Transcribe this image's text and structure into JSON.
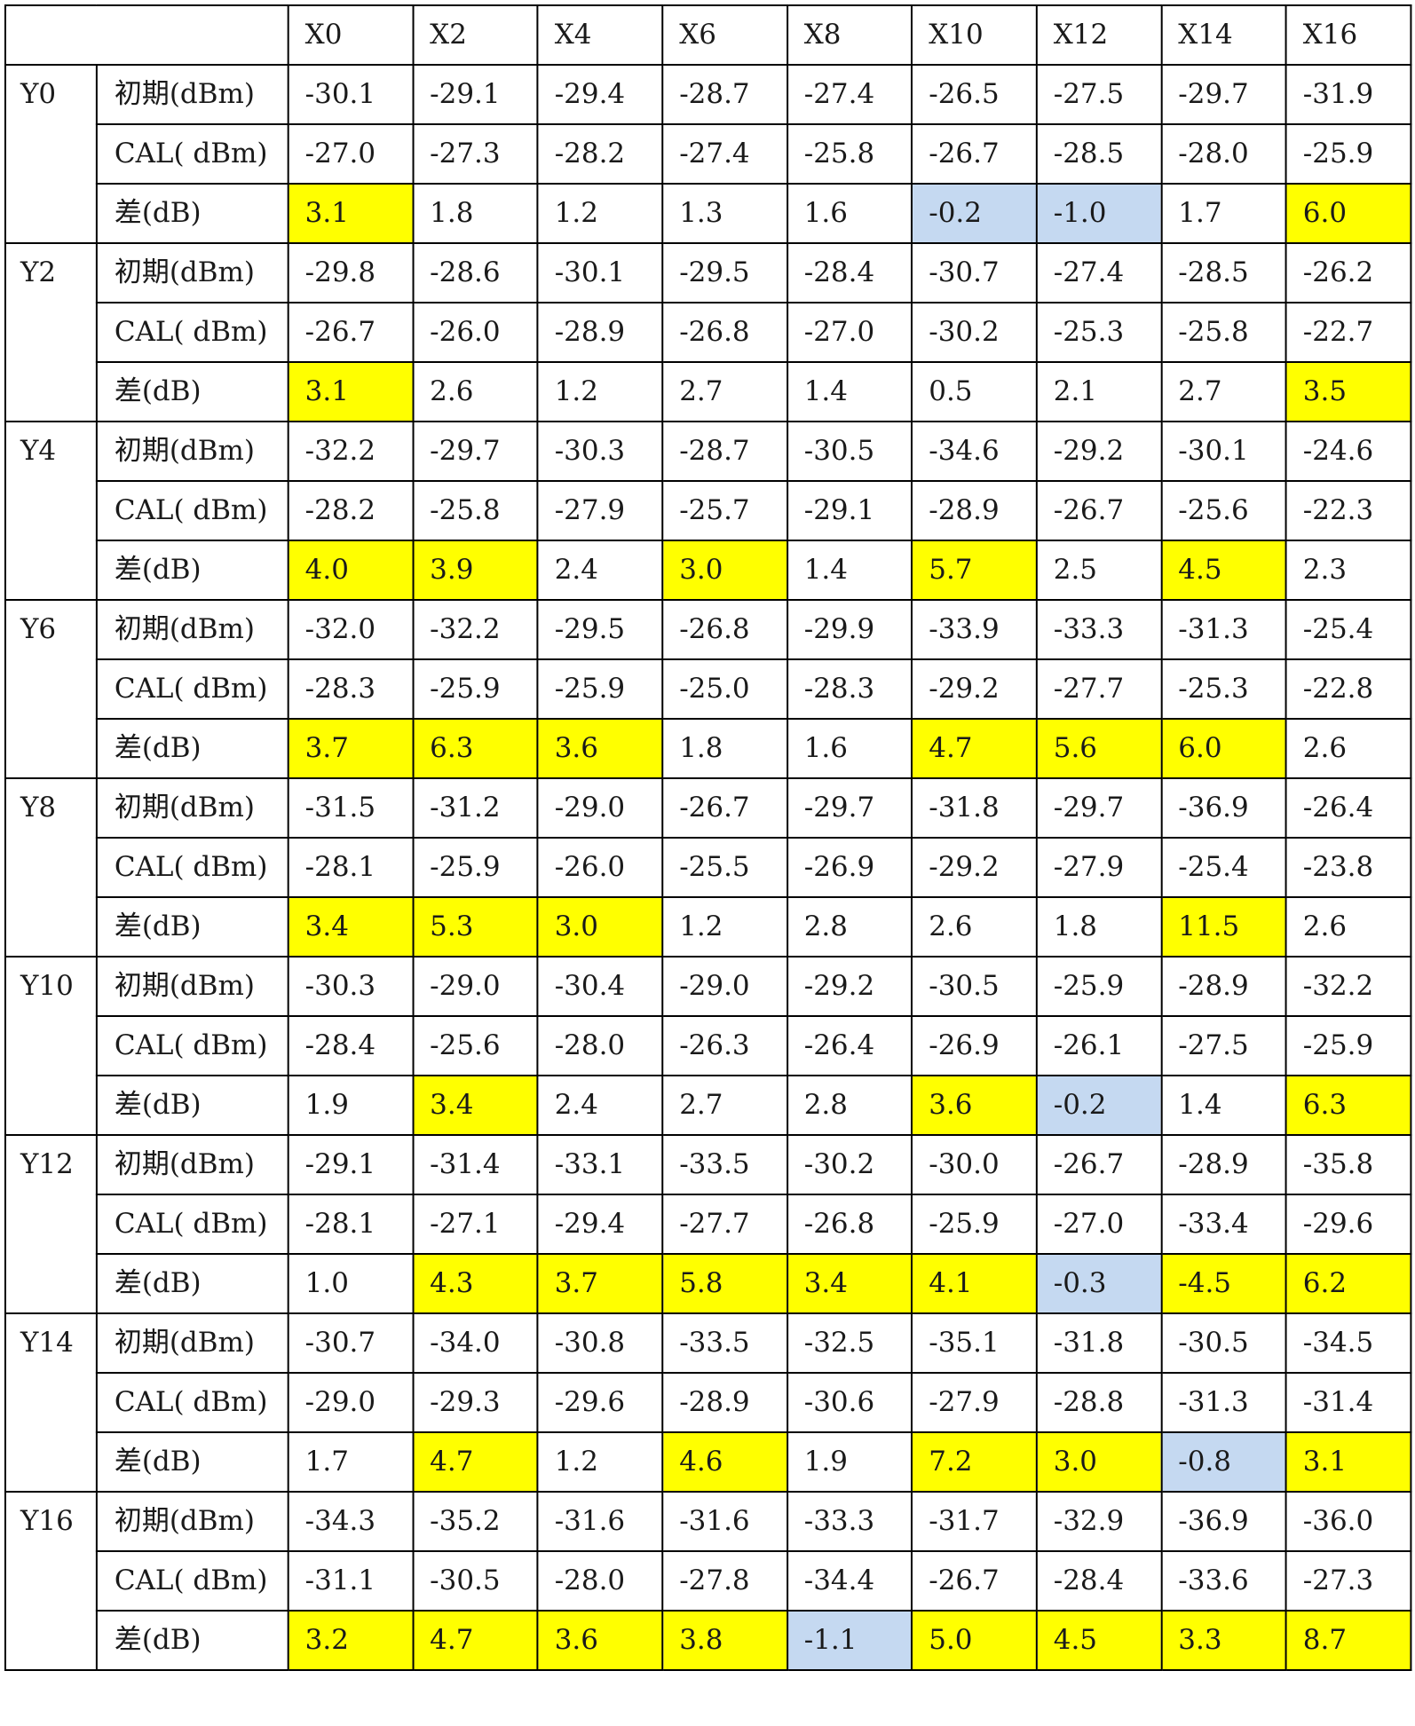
{
  "colors": {
    "highlight_yellow": "#ffff00",
    "highlight_blue": "#c5d9f1",
    "grid_line": "#000000"
  },
  "columns": [
    "X0",
    "X2",
    "X4",
    "X6",
    "X8",
    "X10",
    "X12",
    "X14",
    "X16"
  ],
  "row_labels": {
    "initial": "初期(dBm)",
    "cal": "CAL( dBm)",
    "diff": "差(dB)"
  },
  "groups": [
    {
      "y": "Y0",
      "initial": [
        "-30.1",
        "-29.1",
        "-29.4",
        "-28.7",
        "-27.4",
        "-26.5",
        "-27.5",
        "-29.7",
        "-31.9"
      ],
      "cal": [
        "-27.0",
        "-27.3",
        "-28.2",
        "-27.4",
        "-25.8",
        "-26.7",
        "-28.5",
        "-28.0",
        "-25.9"
      ],
      "diff": [
        "3.1",
        "1.8",
        "1.2",
        "1.3",
        "1.6",
        "-0.2",
        "-1.0",
        "1.7",
        "6.0"
      ],
      "diff_highlight": [
        "yellow",
        "",
        "",
        "",
        "",
        "blue",
        "blue",
        "",
        "yellow"
      ]
    },
    {
      "y": "Y2",
      "initial": [
        "-29.8",
        "-28.6",
        "-30.1",
        "-29.5",
        "-28.4",
        "-30.7",
        "-27.4",
        "-28.5",
        "-26.2"
      ],
      "cal": [
        "-26.7",
        "-26.0",
        "-28.9",
        "-26.8",
        "-27.0",
        "-30.2",
        "-25.3",
        "-25.8",
        "-22.7"
      ],
      "diff": [
        "3.1",
        "2.6",
        "1.2",
        "2.7",
        "1.4",
        "0.5",
        "2.1",
        "2.7",
        "3.5"
      ],
      "diff_highlight": [
        "yellow",
        "",
        "",
        "",
        "",
        "",
        "",
        "",
        "yellow"
      ]
    },
    {
      "y": "Y4",
      "initial": [
        "-32.2",
        "-29.7",
        "-30.3",
        "-28.7",
        "-30.5",
        "-34.6",
        "-29.2",
        "-30.1",
        "-24.6"
      ],
      "cal": [
        "-28.2",
        "-25.8",
        "-27.9",
        "-25.7",
        "-29.1",
        "-28.9",
        "-26.7",
        "-25.6",
        "-22.3"
      ],
      "diff": [
        "4.0",
        "3.9",
        "2.4",
        "3.0",
        "1.4",
        "5.7",
        "2.5",
        "4.5",
        "2.3"
      ],
      "diff_highlight": [
        "yellow",
        "yellow",
        "",
        "yellow",
        "",
        "yellow",
        "",
        "yellow",
        ""
      ]
    },
    {
      "y": "Y6",
      "initial": [
        "-32.0",
        "-32.2",
        "-29.5",
        "-26.8",
        "-29.9",
        "-33.9",
        "-33.3",
        "-31.3",
        "-25.4"
      ],
      "cal": [
        "-28.3",
        "-25.9",
        "-25.9",
        "-25.0",
        "-28.3",
        "-29.2",
        "-27.7",
        "-25.3",
        "-22.8"
      ],
      "diff": [
        "3.7",
        "6.3",
        "3.6",
        "1.8",
        "1.6",
        "4.7",
        "5.6",
        "6.0",
        "2.6"
      ],
      "diff_highlight": [
        "yellow",
        "yellow",
        "yellow",
        "",
        "",
        "yellow",
        "yellow",
        "yellow",
        ""
      ]
    },
    {
      "y": "Y8",
      "initial": [
        "-31.5",
        "-31.2",
        "-29.0",
        "-26.7",
        "-29.7",
        "-31.8",
        "-29.7",
        "-36.9",
        "-26.4"
      ],
      "cal": [
        "-28.1",
        "-25.9",
        "-26.0",
        "-25.5",
        "-26.9",
        "-29.2",
        "-27.9",
        "-25.4",
        "-23.8"
      ],
      "diff": [
        "3.4",
        "5.3",
        "3.0",
        "1.2",
        "2.8",
        "2.6",
        "1.8",
        "11.5",
        "2.6"
      ],
      "diff_highlight": [
        "yellow",
        "yellow",
        "yellow",
        "",
        "",
        "",
        "",
        "yellow",
        ""
      ]
    },
    {
      "y": "Y10",
      "initial": [
        "-30.3",
        "-29.0",
        "-30.4",
        "-29.0",
        "-29.2",
        "-30.5",
        "-25.9",
        "-28.9",
        "-32.2"
      ],
      "cal": [
        "-28.4",
        "-25.6",
        "-28.0",
        "-26.3",
        "-26.4",
        "-26.9",
        "-26.1",
        "-27.5",
        "-25.9"
      ],
      "diff": [
        "1.9",
        "3.4",
        "2.4",
        "2.7",
        "2.8",
        "3.6",
        "-0.2",
        "1.4",
        "6.3"
      ],
      "diff_highlight": [
        "",
        "yellow",
        "",
        "",
        "",
        "yellow",
        "blue",
        "",
        "yellow"
      ]
    },
    {
      "y": "Y12",
      "initial": [
        "-29.1",
        "-31.4",
        "-33.1",
        "-33.5",
        "-30.2",
        "-30.0",
        "-26.7",
        "-28.9",
        "-35.8"
      ],
      "cal": [
        "-28.1",
        "-27.1",
        "-29.4",
        "-27.7",
        "-26.8",
        "-25.9",
        "-27.0",
        "-33.4",
        "-29.6"
      ],
      "diff": [
        "1.0",
        "4.3",
        "3.7",
        "5.8",
        "3.4",
        "4.1",
        "-0.3",
        "-4.5",
        "6.2"
      ],
      "diff_highlight": [
        "",
        "yellow",
        "yellow",
        "yellow",
        "yellow",
        "yellow",
        "blue",
        "yellow",
        "yellow"
      ]
    },
    {
      "y": "Y14",
      "initial": [
        "-30.7",
        "-34.0",
        "-30.8",
        "-33.5",
        "-32.5",
        "-35.1",
        "-31.8",
        "-30.5",
        "-34.5"
      ],
      "cal": [
        "-29.0",
        "-29.3",
        "-29.6",
        "-28.9",
        "-30.6",
        "-27.9",
        "-28.8",
        "-31.3",
        "-31.4"
      ],
      "diff": [
        "1.7",
        "4.7",
        "1.2",
        "4.6",
        "1.9",
        "7.2",
        "3.0",
        "-0.8",
        "3.1"
      ],
      "diff_highlight": [
        "",
        "yellow",
        "",
        "yellow",
        "",
        "yellow",
        "yellow",
        "blue",
        "yellow"
      ]
    },
    {
      "y": "Y16",
      "initial": [
        "-34.3",
        "-35.2",
        "-31.6",
        "-31.6",
        "-33.3",
        "-31.7",
        "-32.9",
        "-36.9",
        "-36.0"
      ],
      "cal": [
        "-31.1",
        "-30.5",
        "-28.0",
        "-27.8",
        "-34.4",
        "-26.7",
        "-28.4",
        "-33.6",
        "-27.3"
      ],
      "diff": [
        "3.2",
        "4.7",
        "3.6",
        "3.8",
        "-1.1",
        "5.0",
        "4.5",
        "3.3",
        "8.7"
      ],
      "diff_highlight": [
        "yellow",
        "yellow",
        "yellow",
        "yellow",
        "blue",
        "yellow",
        "yellow",
        "yellow",
        "yellow"
      ]
    }
  ]
}
